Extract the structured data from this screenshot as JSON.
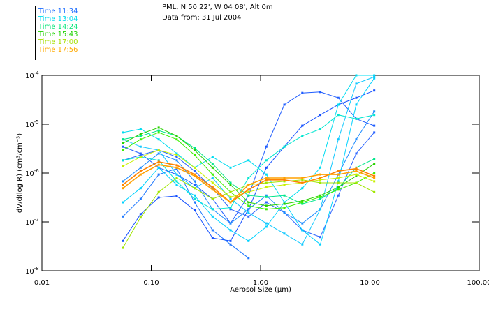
{
  "header": {
    "location": "PML, N 50 22', W 04 08', Alt 0m",
    "date_line": "Data from: 31 Jul 2004"
  },
  "chart_data": {
    "type": "line",
    "xlabel": "Aerosol Size (µm)",
    "ylabel": "dV/d(log R) (cm³/cm⁻³)",
    "x_scale": "log",
    "y_scale": "log",
    "xlim": [
      0.01,
      100
    ],
    "ylim": [
      1e-08,
      0.0001
    ],
    "x_tick_labels": [
      "0.01",
      "0.10",
      "1.00",
      "10.00",
      "100.00"
    ],
    "x_ticks": [
      0.01,
      0.1,
      1,
      10,
      100
    ],
    "y_ticks": [
      0.0001,
      1e-05,
      1e-06,
      1e-07,
      1e-08
    ],
    "y_tick_labels": [
      {
        "base": "10",
        "exp": "-4"
      },
      {
        "base": "10",
        "exp": "-5"
      },
      {
        "base": "10",
        "exp": "-6"
      },
      {
        "base": "10",
        "exp": "-7"
      },
      {
        "base": "10",
        "exp": "-8"
      }
    ],
    "legend_placement": "top-left, outside plot",
    "legend": [
      {
        "label": "Time 11:34",
        "color": "#1e6eff"
      },
      {
        "label": "Time 13:04",
        "color": "#00dcec"
      },
      {
        "label": "Time 14:24",
        "color": "#00e676"
      },
      {
        "label": "Time 15:43",
        "color": "#1ed200"
      },
      {
        "label": "Time 17:00",
        "color": "#a6e000"
      },
      {
        "label": "Time 17:56",
        "color": "#ffaa00"
      }
    ],
    "x": [
      0.055,
      0.08,
      0.117,
      0.171,
      0.249,
      0.364,
      0.531,
      0.776,
      1.13,
      1.65,
      2.41,
      3.52,
      5.14,
      7.5,
      10.95
    ],
    "values_note": "series values given as log10(dV/dlogR)",
    "series": [
      {
        "group": 0,
        "color": "#1e5cff",
        "log10_values": [
          -5.46,
          -5.6,
          -5.89,
          -6.03,
          -6.24,
          -6.53,
          -7.03,
          -6.46,
          -5.46,
          -4.6,
          -4.36,
          -4.34,
          -4.46,
          -4.89,
          -5.03
        ]
      },
      {
        "group": 0,
        "color": "#1450ff",
        "log10_values": [
          -7.39,
          -6.84,
          -6.5,
          -6.47,
          -6.76,
          -7.33,
          -7.39,
          -6.74,
          -5.89,
          -5.46,
          -5.03,
          -4.81,
          -4.6,
          -4.46,
          -4.31
        ]
      },
      {
        "group": 0,
        "color": "#1e78ff",
        "log10_values": [
          -6.89,
          -6.53,
          -6.03,
          -5.91,
          -6.6,
          -7.17,
          -7.46,
          -7.74,
          null,
          null,
          null,
          null,
          null,
          null,
          null
        ]
      },
      {
        "group": 0,
        "color": "#2a64ff",
        "log10_values": [
          -5.74,
          -5.63,
          -5.53,
          -5.67,
          -5.96,
          -6.31,
          -6.74,
          -6.89,
          -6.6,
          -6.81,
          -7.17,
          -7.31,
          -6.46,
          -5.6,
          -5.17
        ]
      },
      {
        "group": 0,
        "color": "#1e8cff",
        "log10_values": [
          -6.17,
          -5.89,
          -5.6,
          -5.74,
          -6.17,
          -6.74,
          -7.03,
          -6.74,
          -6.46,
          -6.81,
          -7.03,
          -6.74,
          -6.03,
          -5.31,
          -4.74
        ]
      },
      {
        "group": 1,
        "color": "#00dcf0",
        "log10_values": [
          -5.17,
          -5.1,
          -5.31,
          -5.6,
          -5.89,
          -5.67,
          -5.89,
          -5.74,
          -6.03,
          -6.6,
          -6.31,
          -5.89,
          -4.6,
          -4.0,
          -4.0
        ]
      },
      {
        "group": 1,
        "color": "#10c8ff",
        "log10_values": [
          -5.31,
          -5.46,
          -5.53,
          -6.03,
          -6.31,
          -6.1,
          -6.53,
          -6.81,
          -7.03,
          -7.24,
          -7.46,
          -6.74,
          -5.31,
          -4.17,
          -4.03
        ]
      },
      {
        "group": 1,
        "color": "#00e6d0",
        "log10_values": [
          -5.74,
          -5.67,
          -5.74,
          -6.17,
          -6.53,
          -6.74,
          -6.71,
          -6.1,
          -5.74,
          -5.46,
          -5.24,
          -5.1,
          -4.81,
          -4.89,
          -4.81
        ]
      },
      {
        "group": 1,
        "color": "#00d2ff",
        "log10_values": [
          -6.6,
          -6.31,
          -5.89,
          -6.24,
          -6.46,
          -6.89,
          -7.17,
          -7.39,
          -7.1,
          -6.6,
          -7.17,
          -7.46,
          -6.17,
          -4.6,
          -4.06
        ]
      },
      {
        "group": 2,
        "color": "#00e68c",
        "log10_values": [
          -5.31,
          -5.24,
          -5.13,
          -5.24,
          -5.49,
          -5.81,
          -6.2,
          -6.46,
          -6.49,
          -6.46,
          -6.63,
          -6.53,
          -6.31,
          -5.89,
          -5.71
        ]
      },
      {
        "group": 3,
        "color": "#28d200",
        "log10_values": [
          -5.39,
          -5.2,
          -5.07,
          -5.24,
          -5.53,
          -5.89,
          -6.24,
          -6.6,
          -6.67,
          -6.63,
          -6.57,
          -6.46,
          -6.29,
          -6.06,
          -5.81
        ]
      },
      {
        "group": 3,
        "color": "#3cf000",
        "log10_values": [
          -5.53,
          -5.31,
          -5.17,
          -5.31,
          -5.63,
          -6.03,
          -6.39,
          -6.67,
          -6.74,
          -6.71,
          -6.6,
          -6.49,
          -6.34,
          -6.2,
          -6.0
        ]
      },
      {
        "group": 4,
        "color": "#c8f000",
        "log10_values": [
          -5.86,
          -5.67,
          -5.53,
          -5.63,
          -5.89,
          -6.2,
          -6.49,
          -6.39,
          -6.29,
          -6.24,
          -6.2,
          -6.14,
          -6.1,
          -6.03,
          -6.17
        ]
      },
      {
        "group": 4,
        "color": "#a0e600",
        "log10_values": [
          -7.53,
          -6.91,
          -6.39,
          -6.1,
          -6.31,
          -6.53,
          -6.39,
          -6.24,
          -6.2,
          -6.17,
          -6.14,
          -6.2,
          -6.2,
          -6.2,
          -6.39
        ]
      },
      {
        "group": 5,
        "color": "#ff8200",
        "log10_values": [
          -6.24,
          -5.96,
          -5.77,
          -5.84,
          -6.03,
          -6.29,
          -6.6,
          -6.34,
          -6.14,
          -6.14,
          -6.2,
          -6.1,
          -5.96,
          -5.91,
          -6.06
        ]
      },
      {
        "group": 5,
        "color": "#ffa000",
        "log10_values": [
          -6.31,
          -6.03,
          -5.83,
          -5.89,
          -6.06,
          -6.34,
          -6.6,
          -6.24,
          -6.1,
          -6.1,
          -6.1,
          -6.03,
          -6.03,
          -5.96,
          -6.1
        ]
      }
    ]
  }
}
